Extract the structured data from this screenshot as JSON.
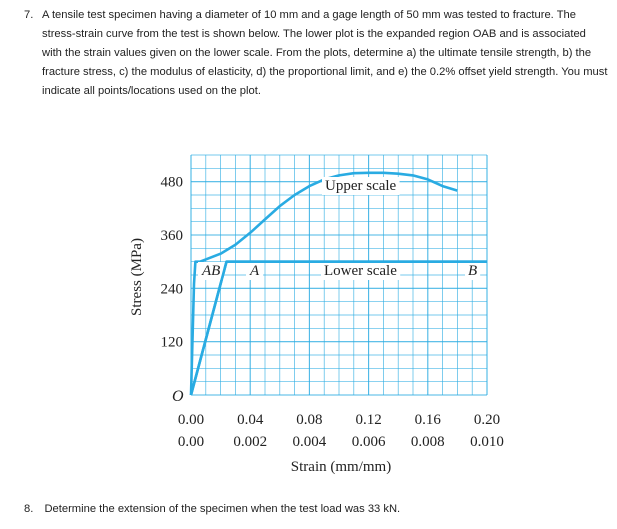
{
  "question7": {
    "number": "7.",
    "text": "A tensile test specimen having a diameter of 10 mm and a gage length of 50 mm was tested to fracture. The stress-strain curve from the test is shown below. The lower plot is the expanded region OAB and is associated with the strain values given on the lower scale. From the plots, determine a) the ultimate tensile strength, b) the fracture stress, c) the modulus of elasticity, d) the proportional limit, and e) the 0.2% offset yield strength. You must indicate all points/locations used on the plot."
  },
  "question8": {
    "number": "8.",
    "text": "Determine the extension of the specimen when the test load was 33 kN."
  },
  "chart_data": {
    "type": "line",
    "ylabel": "Stress (MPa)",
    "xlabel": "Strain (mm/mm)",
    "yticks": [
      "480",
      "360",
      "240",
      "120",
      "O"
    ],
    "ylim": [
      0,
      540
    ],
    "upper_scale": {
      "name": "Upper scale",
      "xticks": [
        "0.00",
        "0.04",
        "0.08",
        "0.12",
        "0.16",
        "0.20"
      ],
      "xlim": [
        0,
        0.2
      ],
      "x": [
        0,
        0.002,
        0.003,
        0.006,
        0.01,
        0.02,
        0.03,
        0.04,
        0.05,
        0.06,
        0.07,
        0.08,
        0.09,
        0.1,
        0.11,
        0.12,
        0.13,
        0.14,
        0.15,
        0.16,
        0.17,
        0.18
      ],
      "y": [
        0,
        250,
        300,
        300,
        305,
        318,
        338,
        365,
        395,
        425,
        450,
        470,
        485,
        494,
        499,
        500,
        500,
        498,
        494,
        485,
        470,
        460
      ]
    },
    "lower_scale": {
      "name": "Lower scale",
      "xticks": [
        "0.00",
        "0.002",
        "0.004",
        "0.006",
        "0.008",
        "0.010"
      ],
      "xlim": [
        0,
        0.01
      ],
      "x": [
        0,
        0.0012,
        0.01
      ],
      "y": [
        0,
        300,
        300
      ]
    },
    "labels": {
      "ab": "AB",
      "a": "A",
      "b": "B",
      "origin": "O"
    },
    "grid": true,
    "colors": {
      "curve": "#29abe2",
      "grid": "#29abe2",
      "text": "#222222"
    }
  }
}
